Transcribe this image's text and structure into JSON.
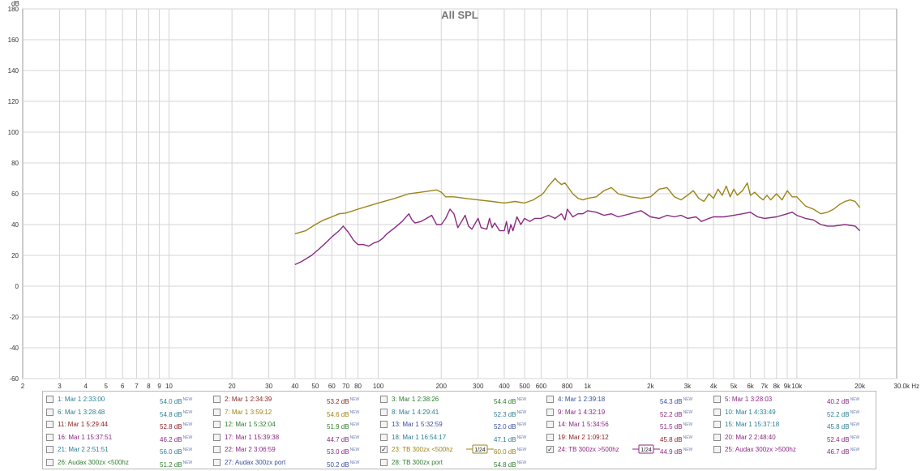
{
  "chart_data": {
    "type": "line",
    "title": "All SPL",
    "ylabel": "dB",
    "xunit": "Hz",
    "xscale": "log",
    "xlim": [
      2,
      30000
    ],
    "ylim": [
      -60,
      180
    ],
    "grid": true,
    "y_ticks": [
      180,
      160,
      140,
      120,
      100,
      80,
      60,
      40,
      20,
      0,
      -20,
      -40,
      -60
    ],
    "x_ticks": [
      {
        "v": 2,
        "label": "2"
      },
      {
        "v": 3,
        "label": "3"
      },
      {
        "v": 4,
        "label": "4"
      },
      {
        "v": 5,
        "label": "5"
      },
      {
        "v": 6,
        "label": "6"
      },
      {
        "v": 7,
        "label": "7"
      },
      {
        "v": 8,
        "label": "8"
      },
      {
        "v": 9,
        "label": "9"
      },
      {
        "v": 10,
        "label": "10"
      },
      {
        "v": 20,
        "label": "20"
      },
      {
        "v": 30,
        "label": "30"
      },
      {
        "v": 40,
        "label": "40"
      },
      {
        "v": 50,
        "label": "50"
      },
      {
        "v": 60,
        "label": "60"
      },
      {
        "v": 70,
        "label": "70"
      },
      {
        "v": 80,
        "label": "80"
      },
      {
        "v": 100,
        "label": "100"
      },
      {
        "v": 200,
        "label": "200"
      },
      {
        "v": 300,
        "label": "300"
      },
      {
        "v": 400,
        "label": "400"
      },
      {
        "v": 500,
        "label": "500"
      },
      {
        "v": 600,
        "label": "600"
      },
      {
        "v": 800,
        "label": "800"
      },
      {
        "v": 1000,
        "label": "1k"
      },
      {
        "v": 2000,
        "label": "2k"
      },
      {
        "v": 3000,
        "label": "3k"
      },
      {
        "v": 4000,
        "label": "4k"
      },
      {
        "v": 5000,
        "label": "5k"
      },
      {
        "v": 6000,
        "label": "6k"
      },
      {
        "v": 7000,
        "label": "7k"
      },
      {
        "v": 8000,
        "label": "8k"
      },
      {
        "v": 9000,
        "label": "9k"
      },
      {
        "v": 10000,
        "label": "10k"
      },
      {
        "v": 20000,
        "label": "20k"
      },
      {
        "v": 30000,
        "label": "30.0k Hz"
      }
    ],
    "series": [
      {
        "name": "23: TB 300zx <500hz",
        "color": "#9c8418",
        "points": [
          [
            40,
            34
          ],
          [
            45,
            36
          ],
          [
            50,
            40
          ],
          [
            55,
            43
          ],
          [
            60,
            45
          ],
          [
            65,
            47
          ],
          [
            70,
            47.5
          ],
          [
            80,
            50
          ],
          [
            100,
            54
          ],
          [
            120,
            57
          ],
          [
            140,
            60
          ],
          [
            160,
            61
          ],
          [
            180,
            62
          ],
          [
            190,
            62.5
          ],
          [
            200,
            61
          ],
          [
            210,
            58
          ],
          [
            230,
            58
          ],
          [
            260,
            57
          ],
          [
            300,
            56
          ],
          [
            350,
            55
          ],
          [
            400,
            54
          ],
          [
            450,
            55
          ],
          [
            500,
            54
          ],
          [
            550,
            56
          ],
          [
            580,
            58
          ],
          [
            600,
            59
          ],
          [
            620,
            61
          ],
          [
            650,
            65
          ],
          [
            680,
            68
          ],
          [
            700,
            70
          ],
          [
            720,
            68
          ],
          [
            750,
            66
          ],
          [
            780,
            67
          ],
          [
            800,
            65
          ],
          [
            850,
            60
          ],
          [
            900,
            57
          ],
          [
            950,
            56
          ],
          [
            1000,
            57
          ],
          [
            1100,
            58
          ],
          [
            1200,
            62
          ],
          [
            1300,
            64
          ],
          [
            1400,
            60
          ],
          [
            1600,
            58
          ],
          [
            1800,
            57
          ],
          [
            2000,
            58
          ],
          [
            2200,
            63
          ],
          [
            2400,
            64
          ],
          [
            2600,
            58
          ],
          [
            2800,
            56
          ],
          [
            3000,
            59
          ],
          [
            3200,
            62
          ],
          [
            3400,
            57
          ],
          [
            3600,
            55
          ],
          [
            3800,
            60
          ],
          [
            4000,
            57
          ],
          [
            4200,
            63
          ],
          [
            4400,
            59
          ],
          [
            4600,
            65
          ],
          [
            4800,
            58
          ],
          [
            5000,
            63
          ],
          [
            5200,
            59
          ],
          [
            5500,
            62
          ],
          [
            5800,
            67
          ],
          [
            6000,
            59
          ],
          [
            6300,
            61
          ],
          [
            6600,
            58
          ],
          [
            6900,
            56
          ],
          [
            7200,
            59
          ],
          [
            7500,
            56
          ],
          [
            8000,
            60
          ],
          [
            8500,
            56
          ],
          [
            9000,
            62
          ],
          [
            9500,
            58
          ],
          [
            10000,
            58
          ],
          [
            11000,
            52
          ],
          [
            12000,
            50
          ],
          [
            13000,
            47
          ],
          [
            14000,
            48
          ],
          [
            15000,
            50
          ],
          [
            16000,
            53
          ],
          [
            17000,
            55
          ],
          [
            18000,
            56
          ],
          [
            19000,
            55
          ],
          [
            20000,
            51
          ]
        ]
      },
      {
        "name": "24: TB 300zx >500hz",
        "color": "#8a2a82",
        "points": [
          [
            40,
            14
          ],
          [
            43,
            16
          ],
          [
            48,
            20
          ],
          [
            52,
            24
          ],
          [
            56,
            28
          ],
          [
            60,
            32
          ],
          [
            65,
            36
          ],
          [
            68,
            39
          ],
          [
            72,
            35
          ],
          [
            76,
            30
          ],
          [
            80,
            27
          ],
          [
            85,
            27
          ],
          [
            90,
            26
          ],
          [
            95,
            28
          ],
          [
            100,
            29
          ],
          [
            105,
            31
          ],
          [
            110,
            34
          ],
          [
            120,
            38
          ],
          [
            130,
            42
          ],
          [
            140,
            47
          ],
          [
            145,
            43
          ],
          [
            150,
            41
          ],
          [
            160,
            42
          ],
          [
            170,
            44
          ],
          [
            180,
            46
          ],
          [
            185,
            43
          ],
          [
            190,
            40
          ],
          [
            200,
            40
          ],
          [
            210,
            44
          ],
          [
            220,
            50
          ],
          [
            230,
            47
          ],
          [
            240,
            38
          ],
          [
            250,
            42
          ],
          [
            260,
            46
          ],
          [
            270,
            39
          ],
          [
            280,
            37
          ],
          [
            300,
            44
          ],
          [
            310,
            38
          ],
          [
            330,
            37
          ],
          [
            340,
            44
          ],
          [
            350,
            38
          ],
          [
            360,
            41
          ],
          [
            380,
            36
          ],
          [
            400,
            36
          ],
          [
            410,
            42
          ],
          [
            420,
            34
          ],
          [
            430,
            40
          ],
          [
            440,
            36
          ],
          [
            460,
            45
          ],
          [
            480,
            40
          ],
          [
            500,
            44
          ],
          [
            530,
            42
          ],
          [
            560,
            44
          ],
          [
            600,
            44
          ],
          [
            650,
            46
          ],
          [
            700,
            44
          ],
          [
            750,
            47
          ],
          [
            780,
            43
          ],
          [
            800,
            50
          ],
          [
            850,
            45
          ],
          [
            900,
            47
          ],
          [
            950,
            47
          ],
          [
            1000,
            49
          ],
          [
            1100,
            48
          ],
          [
            1200,
            46
          ],
          [
            1300,
            47
          ],
          [
            1400,
            45
          ],
          [
            1600,
            47
          ],
          [
            1800,
            49
          ],
          [
            2000,
            45
          ],
          [
            2200,
            44
          ],
          [
            2400,
            46
          ],
          [
            2600,
            45
          ],
          [
            2800,
            46
          ],
          [
            3000,
            44
          ],
          [
            3300,
            45
          ],
          [
            3500,
            42
          ],
          [
            3800,
            44
          ],
          [
            4000,
            45
          ],
          [
            4500,
            45
          ],
          [
            5000,
            46
          ],
          [
            5500,
            47
          ],
          [
            6000,
            48
          ],
          [
            6500,
            45
          ],
          [
            7000,
            44
          ],
          [
            8000,
            45
          ],
          [
            9000,
            47
          ],
          [
            9500,
            48
          ],
          [
            10000,
            46
          ],
          [
            11000,
            44
          ],
          [
            12000,
            43
          ],
          [
            13000,
            40
          ],
          [
            14000,
            39
          ],
          [
            15000,
            39
          ],
          [
            17000,
            40
          ],
          [
            19000,
            39
          ],
          [
            20000,
            36
          ]
        ]
      }
    ]
  },
  "legend": {
    "rows": [
      [
        {
          "checked": false,
          "name": "1: Mar 1 2:33:00",
          "value": "54.0 dB",
          "color": "#2f7f93"
        },
        {
          "checked": false,
          "name": "2: Mar 1 2:34:39",
          "value": "53.2 dB",
          "color": "#8a2a2a"
        },
        {
          "checked": false,
          "name": "3: Mar 1 2:38:26",
          "value": "54.4 dB",
          "color": "#2e7d2e"
        },
        {
          "checked": false,
          "name": "4: Mar 1 2:39:18",
          "value": "54.3 dB",
          "color": "#3a4f9c"
        },
        {
          "checked": false,
          "name": "5: Mar 1 3:28:03",
          "value": "40.2 dB",
          "color": "#8a2a82"
        }
      ],
      [
        {
          "checked": false,
          "name": "6: Mar 1 3:28:48",
          "value": "54.8 dB",
          "color": "#2f7f93"
        },
        {
          "checked": false,
          "name": "7: Mar 1 3:59:12",
          "value": "54.6 dB",
          "color": "#9c8418"
        },
        {
          "checked": false,
          "name": "8: Mar 1 4:29:41",
          "value": "52.3 dB",
          "color": "#2f7f93"
        },
        {
          "checked": false,
          "name": "9: Mar 1 4:32:19",
          "value": "52.2 dB",
          "color": "#8a2a82"
        },
        {
          "checked": false,
          "name": "10: Mar 1 4:33:49",
          "value": "52.2 dB",
          "color": "#2f7f93"
        }
      ],
      [
        {
          "checked": false,
          "name": "11: Mar 1 5:29:44",
          "value": "52.8 dB",
          "color": "#8a1f1f"
        },
        {
          "checked": false,
          "name": "12: Mar 1 5:32:04",
          "value": "51.9 dB",
          "color": "#2e7d2e"
        },
        {
          "checked": false,
          "name": "13: Mar 1 5:32:59",
          "value": "52.0 dB",
          "color": "#3a4f9c"
        },
        {
          "checked": false,
          "name": "14: Mar 1 5:34:56",
          "value": "51.5 dB",
          "color": "#8a2a82"
        },
        {
          "checked": false,
          "name": "15: Mar 1 15:37:18",
          "value": "45.8 dB",
          "color": "#2f7f93"
        }
      ],
      [
        {
          "checked": false,
          "name": "16: Mar 1 15:37:51",
          "value": "46.2 dB",
          "color": "#8a2a82"
        },
        {
          "checked": false,
          "name": "17: Mar 1 15:39:38",
          "value": "44.7 dB",
          "color": "#8a2a82"
        },
        {
          "checked": false,
          "name": "18: Mar 1 16:54:17",
          "value": "47.1 dB",
          "color": "#2f7f93"
        },
        {
          "checked": false,
          "name": "19: Mar 2 1:09:12",
          "value": "45.8 dB",
          "color": "#8a1f1f"
        },
        {
          "checked": false,
          "name": "20: Mar 2 2:48:40",
          "value": "52.4 dB",
          "color": "#8a2a82"
        }
      ],
      [
        {
          "checked": false,
          "name": "21: Mar 2 2:51:51",
          "value": "56.0 dB",
          "color": "#2f7f93"
        },
        {
          "checked": false,
          "name": "22: Mar 2 3:06:59",
          "value": "53.0 dB",
          "color": "#8a2a82"
        },
        {
          "checked": true,
          "name": "23: TB 300zx <500hz",
          "value": "60.0 dB",
          "color": "#9c8418",
          "smoothing": "1/24"
        },
        {
          "checked": true,
          "name": "24: TB 300zx >500hz",
          "value": "44.9 dB",
          "color": "#8a2a82",
          "smoothing": "1/24"
        },
        {
          "checked": false,
          "name": "25: Audax 300zx >500hz",
          "value": "46.7 dB",
          "color": "#8a2a82"
        }
      ],
      [
        {
          "checked": false,
          "name": "26: Audax 300zx <500hz",
          "value": "51.2 dB",
          "color": "#2e7d2e"
        },
        {
          "checked": false,
          "name": "27: Audax 300zx port",
          "value": "50.2 dB",
          "color": "#3a4f9c"
        },
        {
          "checked": false,
          "name": "28: TB 300zx port",
          "value": "54.8 dB",
          "color": "#2e7d2e"
        }
      ]
    ],
    "new_badge": "NEW"
  }
}
